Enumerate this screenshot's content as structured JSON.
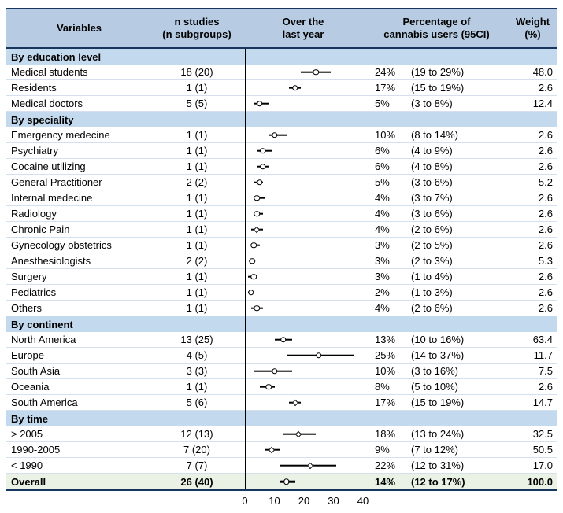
{
  "header": {
    "variables": "Variables",
    "n_line1": "n studies",
    "n_line2": "(n subgroups)",
    "plot_line1": "Over the",
    "plot_line2": "last year",
    "pct_line1": "Percentage of",
    "pct_line2": "cannabis users (95CI)",
    "weight_line1": "Weight",
    "weight_line2": "(%)"
  },
  "colors": {
    "border_navy": "#17365d",
    "header_bg": "#b7cce3",
    "section_bg": "#c3d9ee",
    "overall_bg": "#e9f2e4"
  },
  "chart_data": {
    "type": "scatter",
    "subtype": "forest-plot",
    "title": "Percentage of cannabis users over the last year (95CI)",
    "xlim": [
      0,
      40
    ],
    "xticks": [
      0,
      10,
      20,
      30,
      40
    ],
    "sections": [
      {
        "title": "By education level",
        "rows": [
          {
            "label": "Medical students",
            "n": "18 (20)",
            "pct": "24%",
            "ci": "(19 to 29%)",
            "weight": "48.0",
            "est": 24,
            "lo": 19,
            "hi": 29,
            "marker": "circle"
          },
          {
            "label": "Residents",
            "n": "1 (1)",
            "pct": "17%",
            "ci": "(15 to 19%)",
            "weight": "2.6",
            "est": 17,
            "lo": 15,
            "hi": 19,
            "marker": "circle"
          },
          {
            "label": "Medical doctors",
            "n": "5 (5)",
            "pct": "5%",
            "ci": "(3 to 8%)",
            "weight": "12.4",
            "est": 5,
            "lo": 3,
            "hi": 8,
            "marker": "circle"
          }
        ]
      },
      {
        "title": "By speciality",
        "rows": [
          {
            "label": "Emergency medecine",
            "n": "1 (1)",
            "pct": "10%",
            "ci": "(8 to 14%)",
            "weight": "2.6",
            "est": 10,
            "lo": 8,
            "hi": 14,
            "marker": "circle"
          },
          {
            "label": "Psychiatry",
            "n": "1 (1)",
            "pct": "6%",
            "ci": "(4 to 9%)",
            "weight": "2.6",
            "est": 6,
            "lo": 4,
            "hi": 9,
            "marker": "circle"
          },
          {
            "label": "Cocaine utilizing",
            "n": "1 (1)",
            "pct": "6%",
            "ci": "(4 to 8%)",
            "weight": "2.6",
            "est": 6,
            "lo": 4,
            "hi": 8,
            "marker": "circle"
          },
          {
            "label": "General Practitioner",
            "n": "2 (2)",
            "pct": "5%",
            "ci": "(3 to 6%)",
            "weight": "5.2",
            "est": 5,
            "lo": 3,
            "hi": 6,
            "marker": "circle"
          },
          {
            "label": "Internal medecine",
            "n": "1 (1)",
            "pct": "4%",
            "ci": "(3 to 7%)",
            "weight": "2.6",
            "est": 4,
            "lo": 3,
            "hi": 7,
            "marker": "circle"
          },
          {
            "label": "Radiology",
            "n": "1 (1)",
            "pct": "4%",
            "ci": "(3 to 6%)",
            "weight": "2.6",
            "est": 4,
            "lo": 3,
            "hi": 6,
            "marker": "circle"
          },
          {
            "label": "Chronic Pain",
            "n": "1 (1)",
            "pct": "4%",
            "ci": "(2 to 6%)",
            "weight": "2.6",
            "est": 4,
            "lo": 2,
            "hi": 6,
            "marker": "diamond"
          },
          {
            "label": "Gynecology obstetrics",
            "n": "1 (1)",
            "pct": "3%",
            "ci": "(2 to 5%)",
            "weight": "2.6",
            "est": 3,
            "lo": 2,
            "hi": 5,
            "marker": "circle"
          },
          {
            "label": "Anesthesiologists",
            "n": "2 (2)",
            "pct": "3%",
            "ci": "(2 to 3%)",
            "weight": "5.3",
            "est": 2.5,
            "lo": 2,
            "hi": 3,
            "marker": "circle"
          },
          {
            "label": "Surgery",
            "n": "1 (1)",
            "pct": "3%",
            "ci": "(1 to 4%)",
            "weight": "2.6",
            "est": 3,
            "lo": 1,
            "hi": 4,
            "marker": "circle"
          },
          {
            "label": "Pediatrics",
            "n": "1 (1)",
            "pct": "2%",
            "ci": "(1 to 3%)",
            "weight": "2.6",
            "est": 2,
            "lo": 1,
            "hi": 3,
            "marker": "circle"
          },
          {
            "label": "Others",
            "n": "1 (1)",
            "pct": "4%",
            "ci": "(2 to 6%)",
            "weight": "2.6",
            "est": 4,
            "lo": 2,
            "hi": 6,
            "marker": "circle"
          }
        ]
      },
      {
        "title": "By continent",
        "rows": [
          {
            "label": "North America",
            "n": "13 (25)",
            "pct": "13%",
            "ci": "(10 to 16%)",
            "weight": "63.4",
            "est": 13,
            "lo": 10,
            "hi": 16,
            "marker": "circle"
          },
          {
            "label": "Europe",
            "n": "4 (5)",
            "pct": "25%",
            "ci": "(14 to 37%)",
            "weight": "11.7",
            "est": 25,
            "lo": 14,
            "hi": 37,
            "marker": "circle"
          },
          {
            "label": "South Asia",
            "n": "3 (3)",
            "pct": "10%",
            "ci": "(3 to 16%)",
            "weight": "7.5",
            "est": 10,
            "lo": 3,
            "hi": 16,
            "marker": "circle"
          },
          {
            "label": "Oceania",
            "n": "1 (1)",
            "pct": "8%",
            "ci": "(5 to 10%)",
            "weight": "2.6",
            "est": 8,
            "lo": 5,
            "hi": 10,
            "marker": "circle"
          },
          {
            "label": "South America",
            "n": "5 (6)",
            "pct": "17%",
            "ci": "(15 to 19%)",
            "weight": "14.7",
            "est": 17,
            "lo": 15,
            "hi": 19,
            "marker": "diamond"
          }
        ]
      },
      {
        "title": "By time",
        "rows": [
          {
            "label": "> 2005",
            "n": "12 (13)",
            "pct": "18%",
            "ci": "(13 to 24%)",
            "weight": "32.5",
            "est": 18,
            "lo": 13,
            "hi": 24,
            "marker": "diamond"
          },
          {
            "label": "1990-2005",
            "n": "7 (20)",
            "pct": "9%",
            "ci": "(7 to 12%)",
            "weight": "50.5",
            "est": 9,
            "lo": 7,
            "hi": 12,
            "marker": "diamond"
          },
          {
            "label": "< 1990",
            "n": "7 (7)",
            "pct": "22%",
            "ci": "(12 to 31%)",
            "weight": "17.0",
            "est": 22,
            "lo": 12,
            "hi": 31,
            "marker": "diamond"
          }
        ]
      }
    ],
    "overall": {
      "label": "Overall",
      "n": "26 (40)",
      "pct": "14%",
      "ci": "(12 to 17%)",
      "weight": "100.0",
      "est": 14,
      "lo": 12,
      "hi": 17,
      "marker": "circle"
    }
  }
}
